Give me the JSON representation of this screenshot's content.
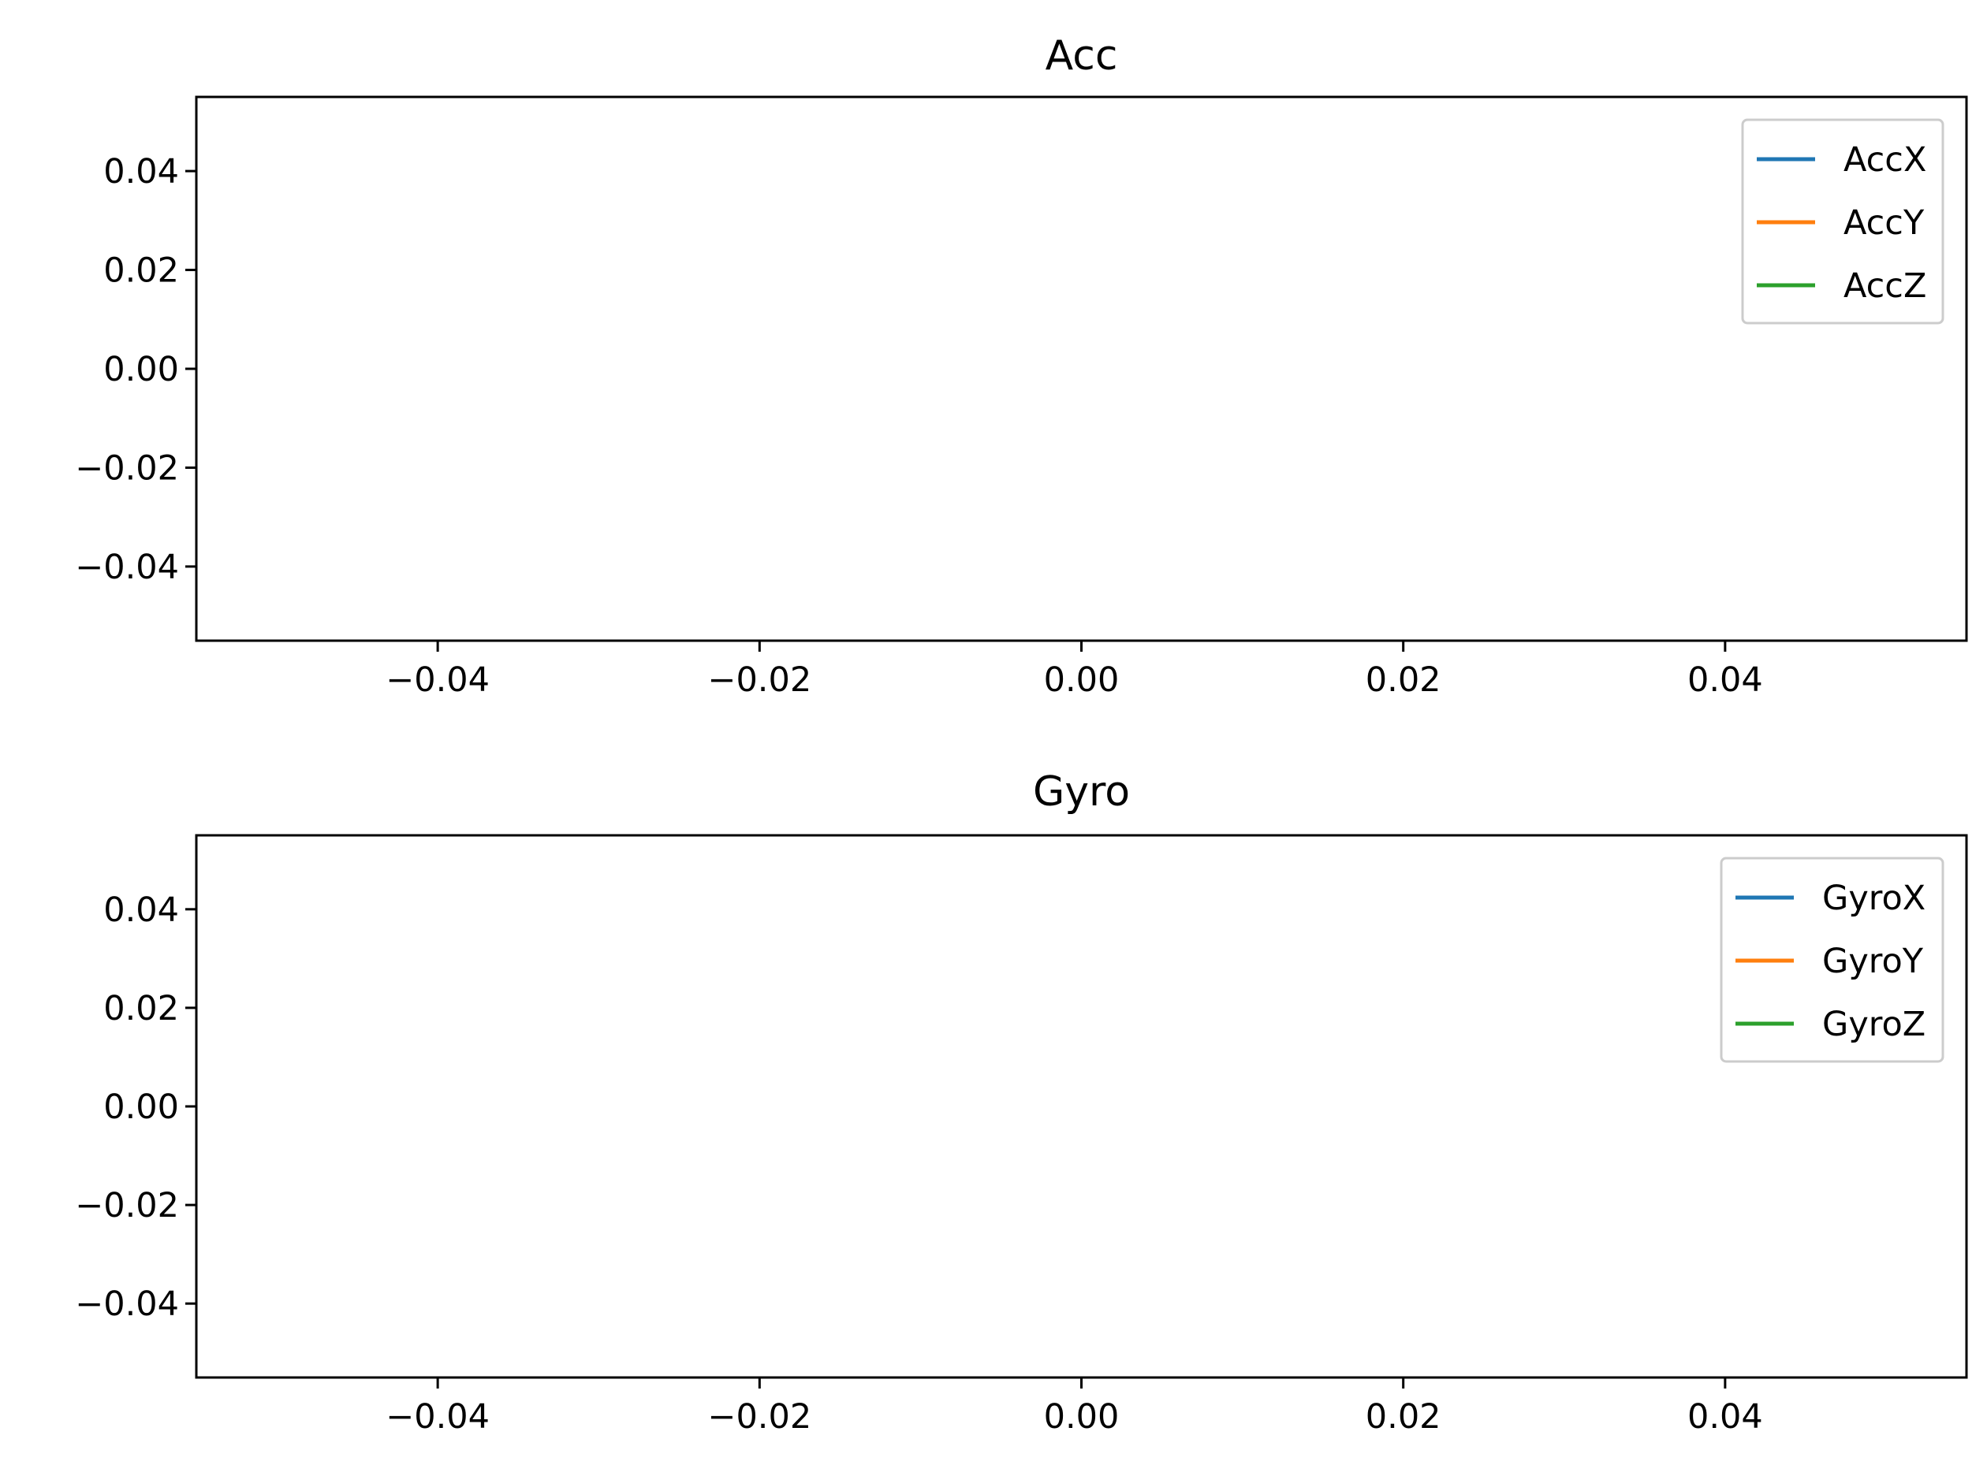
{
  "chart_data": [
    {
      "type": "line",
      "title": "Acc",
      "xlabel": "",
      "ylabel": "",
      "xlim": [
        -0.055,
        0.055
      ],
      "ylim": [
        -0.055,
        0.055
      ],
      "x_ticks": [
        -0.04,
        -0.02,
        0.0,
        0.02,
        0.04
      ],
      "y_ticks": [
        0.04,
        0.02,
        0.0,
        -0.02,
        -0.04
      ],
      "x_tick_labels": [
        "−0.04",
        "−0.02",
        "0.00",
        "0.02",
        "0.04"
      ],
      "y_tick_labels": [
        "0.04",
        "0.02",
        "0.00",
        "−0.02",
        "−0.04"
      ],
      "legend_position": "top-right",
      "grid": false,
      "series": [
        {
          "name": "AccX",
          "color": "#1f77b4",
          "x": [],
          "y": []
        },
        {
          "name": "AccY",
          "color": "#ff7f0e",
          "x": [],
          "y": []
        },
        {
          "name": "AccZ",
          "color": "#2ca02c",
          "x": [],
          "y": []
        }
      ]
    },
    {
      "type": "line",
      "title": "Gyro",
      "xlabel": "",
      "ylabel": "",
      "xlim": [
        -0.055,
        0.055
      ],
      "ylim": [
        -0.055,
        0.055
      ],
      "x_ticks": [
        -0.04,
        -0.02,
        0.0,
        0.02,
        0.04
      ],
      "y_ticks": [
        0.04,
        0.02,
        0.0,
        -0.02,
        -0.04
      ],
      "x_tick_labels": [
        "−0.04",
        "−0.02",
        "0.00",
        "0.02",
        "0.04"
      ],
      "y_tick_labels": [
        "0.04",
        "0.02",
        "0.00",
        "−0.02",
        "−0.04"
      ],
      "legend_position": "top-right",
      "grid": false,
      "series": [
        {
          "name": "GyroX",
          "color": "#1f77b4",
          "x": [],
          "y": []
        },
        {
          "name": "GyroY",
          "color": "#ff7f0e",
          "x": [],
          "y": []
        },
        {
          "name": "GyroZ",
          "color": "#2ca02c",
          "x": [],
          "y": []
        }
      ]
    }
  ]
}
